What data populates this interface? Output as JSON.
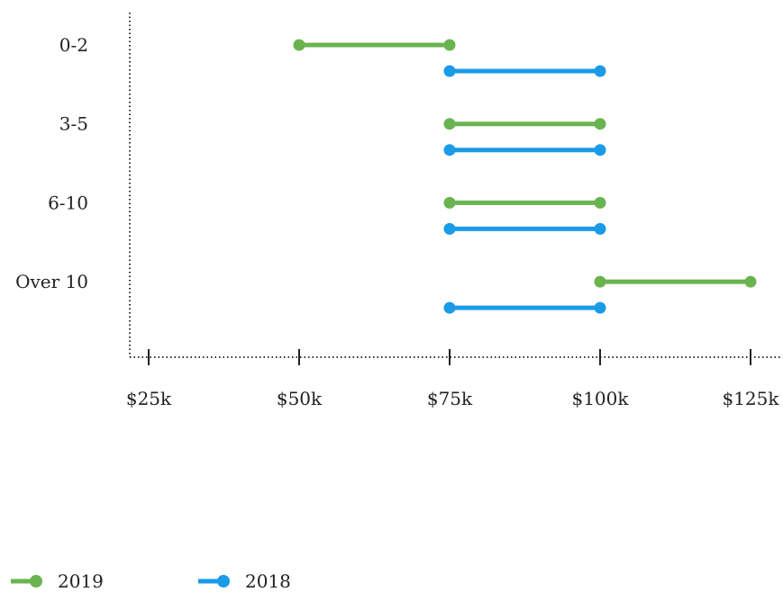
{
  "chart_data": {
    "type": "range-bar",
    "title": "",
    "xlabel": "",
    "ylabel": "",
    "categories": [
      "0-2",
      "3-5",
      "6-10",
      "Over 10"
    ],
    "x_ticks": [
      25000,
      50000,
      75000,
      100000,
      125000
    ],
    "x_tick_labels": [
      "$25k",
      "$50k",
      "$75k",
      "$100k",
      "$125k"
    ],
    "xlim": [
      22000,
      130000
    ],
    "grid": false,
    "legend_position": "bottom-left",
    "series": [
      {
        "name": "2019",
        "color": "#6ab450",
        "ranges": [
          [
            50000,
            75000
          ],
          [
            75000,
            100000
          ],
          [
            75000,
            100000
          ],
          [
            100000,
            125000
          ]
        ]
      },
      {
        "name": "2018",
        "color": "#1a9be8",
        "ranges": [
          [
            75000,
            100000
          ],
          [
            75000,
            100000
          ],
          [
            75000,
            100000
          ],
          [
            75000,
            100000
          ]
        ]
      }
    ]
  }
}
